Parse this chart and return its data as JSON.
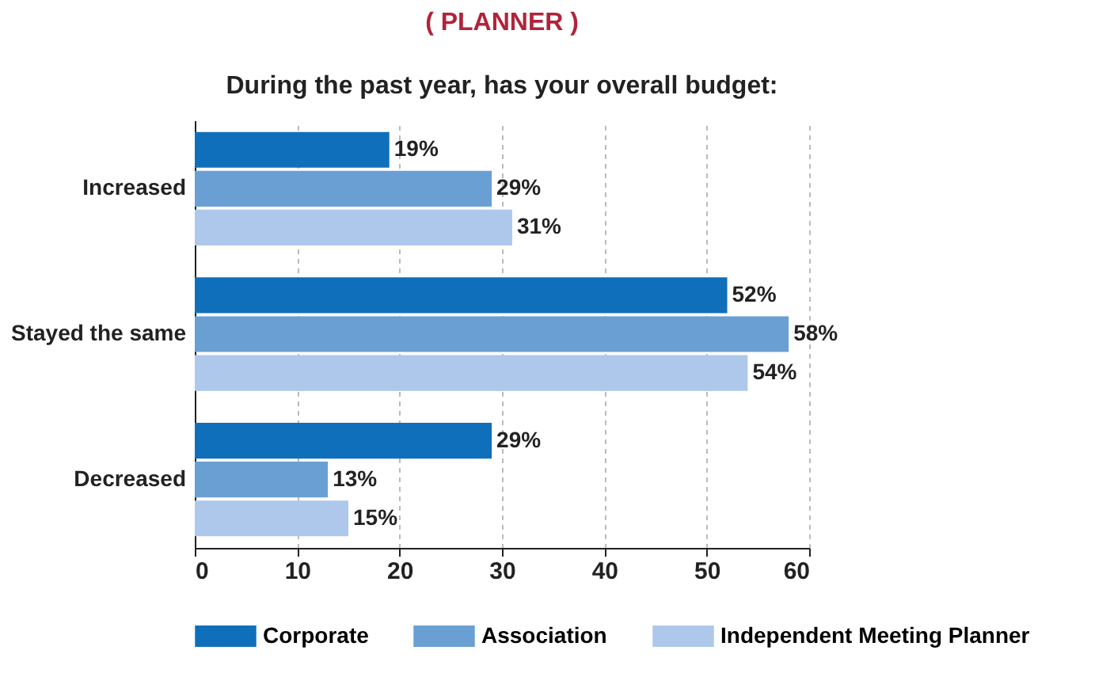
{
  "chart_data": {
    "type": "bar",
    "orientation": "horizontal",
    "title": "( PLANNER )",
    "subtitle": "During the past year, has your overall budget:",
    "categories": [
      "Increased",
      "Stayed the same",
      "Decreased"
    ],
    "series": [
      {
        "name": "Corporate",
        "color": "#0f6fba",
        "values": [
          19,
          52,
          29
        ],
        "value_labels": [
          "19%",
          "52%",
          "29%"
        ]
      },
      {
        "name": "Association",
        "color": "#6a9fd4",
        "values": [
          29,
          58,
          13
        ],
        "value_labels": [
          "29%",
          "58%",
          "13%"
        ]
      },
      {
        "name": "Independent Meeting Planner",
        "color": "#adc8ea",
        "values": [
          31,
          54,
          15
        ],
        "value_labels": [
          "31%",
          "54%",
          "15%"
        ]
      }
    ],
    "xlim": [
      0,
      60
    ],
    "xticks": [
      0,
      10,
      20,
      30,
      40,
      50,
      60
    ],
    "grid": "x",
    "legend": "bottom"
  }
}
